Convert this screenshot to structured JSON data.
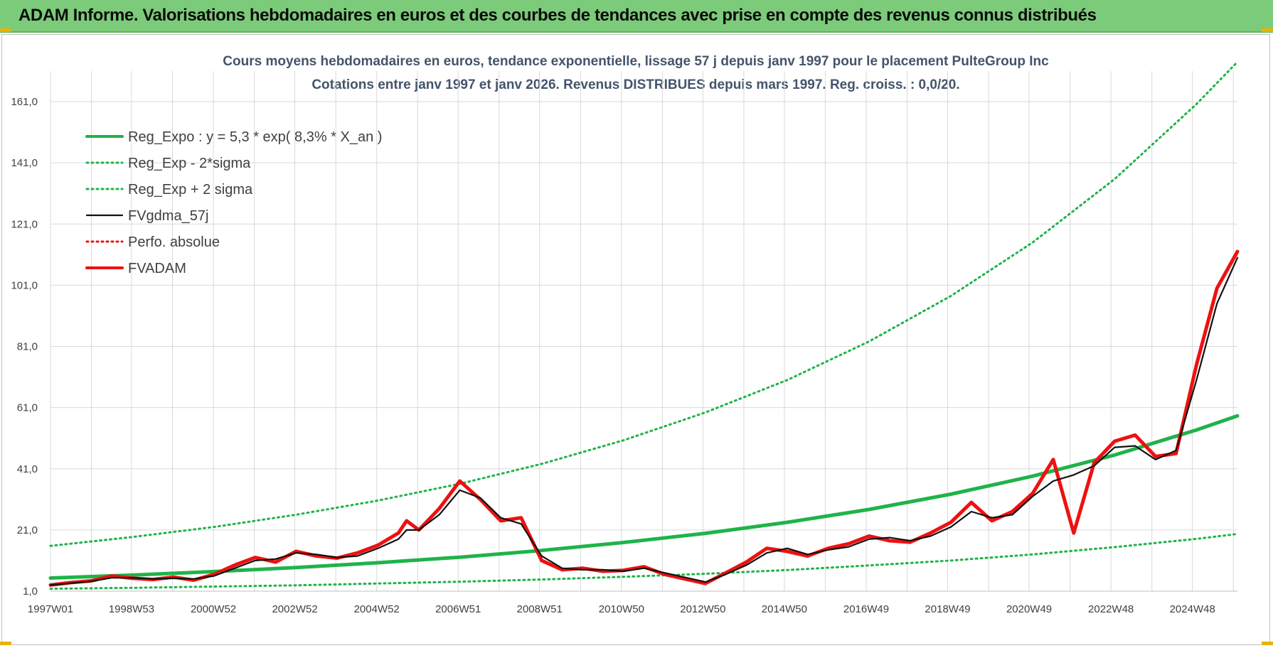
{
  "header": {
    "title": "ADAM Informe. Valorisations hebdomadaires en euros et des courbes de tendances avec prise en compte des revenus connus distribués"
  },
  "colors": {
    "header_bg": "#7ccb7a",
    "reg_green": "#1fb34a",
    "fv_black": "#111111",
    "fvadam_red": "#ee1111",
    "grid": "#d9d9d9",
    "title_blue": "#44546a"
  },
  "chart_data": {
    "type": "line",
    "title_lines": [
      "Cours moyens hebdomadaires en euros, tendance exponentielle, lissage 57 j depuis janv 1997 pour le placement PulteGroup Inc",
      "Cotations entre janv 1997 et janv 2026. Revenus DISTRIBUES depuis mars 1997.  Reg. croiss. : 0,0/20."
    ],
    "xlabel": "",
    "ylabel": "",
    "x_unit": "years since 1997W01",
    "xlim": [
      0,
      29.0
    ],
    "ylim": [
      1.0,
      171.0
    ],
    "y_ticks": [
      1.0,
      21.0,
      41.0,
      61.0,
      81.0,
      101.0,
      121.0,
      141.0,
      161.0
    ],
    "y_tick_labels": [
      "1,0",
      "21,0",
      "41,0",
      "61,0",
      "81,0",
      "101,0",
      "121,0",
      "141,0",
      "161,0"
    ],
    "x_ticks": [
      0,
      1.98,
      3.98,
      5.97,
      7.97,
      9.96,
      11.95,
      13.95,
      15.94,
      17.93,
      19.93,
      21.92,
      23.91,
      25.91,
      27.9
    ],
    "x_tick_labels": [
      "1997W01",
      "1998W53",
      "2000W52",
      "2002W52",
      "2004W52",
      "2006W51",
      "2008W51",
      "2010W50",
      "2012W50",
      "2014W50",
      "2016W49",
      "2018W49",
      "2020W49",
      "2022W48",
      "2024W48"
    ],
    "grid": true,
    "legend_position": "top-left",
    "series": [
      {
        "name": "Reg_Expo : y = 5,3 * exp( 8,3% *  X_an )",
        "style": "solid-thick",
        "color": "#1fb34a",
        "x": [
          0,
          2,
          4,
          6,
          8,
          10,
          12,
          14,
          16,
          18,
          20,
          22,
          24,
          26,
          28,
          29
        ],
        "values": [
          5.3,
          6.25,
          7.4,
          8.7,
          10.3,
          12.1,
          14.3,
          16.9,
          19.9,
          23.5,
          27.7,
          32.7,
          38.6,
          45.5,
          53.7,
          58.3
        ]
      },
      {
        "name": "Reg_Exp - 2*sigma",
        "style": "dotted",
        "color": "#1fb34a",
        "x": [
          0,
          2,
          4,
          6,
          8,
          10,
          12,
          14,
          16,
          18,
          20,
          22,
          24,
          26,
          28,
          29
        ],
        "values": [
          1.8,
          2.1,
          2.5,
          2.9,
          3.5,
          4.1,
          4.8,
          5.7,
          6.7,
          7.9,
          9.4,
          11.0,
          13.0,
          15.4,
          18.1,
          19.7
        ]
      },
      {
        "name": "Reg_Exp + 2 sigma",
        "style": "dotted",
        "color": "#1fb34a",
        "x": [
          0,
          2,
          4,
          6,
          8,
          10,
          12,
          14,
          16,
          18,
          20,
          22,
          24,
          26,
          28,
          29
        ],
        "values": [
          15.8,
          18.7,
          22.0,
          26.0,
          30.6,
          36.1,
          42.6,
          50.3,
          59.4,
          70.0,
          82.6,
          97.5,
          115.0,
          135.7,
          160.2,
          174.0
        ]
      },
      {
        "name": "FVgdma_57j",
        "style": "solid",
        "color": "#111111",
        "x": [
          0,
          0.5,
          1.0,
          1.5,
          2.0,
          2.5,
          3.0,
          3.5,
          4.0,
          4.5,
          5.0,
          5.5,
          6.0,
          6.5,
          7.0,
          7.5,
          8.0,
          8.5,
          8.7,
          9.0,
          9.5,
          10.0,
          10.5,
          11.0,
          11.5,
          12.0,
          12.5,
          13.0,
          13.5,
          14.0,
          14.5,
          15.0,
          15.5,
          16.0,
          16.5,
          17.0,
          17.5,
          18.0,
          18.5,
          19.0,
          19.5,
          20.0,
          20.5,
          21.0,
          21.5,
          22.0,
          22.5,
          23.0,
          23.5,
          24.0,
          24.5,
          25.0,
          25.5,
          26.0,
          26.5,
          27.0,
          27.5,
          28.0,
          28.5,
          29.0
        ],
        "values": [
          3.0,
          3.6,
          4.2,
          5.4,
          5.4,
          5.0,
          5.2,
          5.0,
          6.0,
          8.5,
          11.0,
          11.5,
          13.5,
          13.0,
          12.0,
          12.5,
          15.0,
          18.0,
          21.0,
          21.0,
          26.0,
          34.0,
          31.5,
          25.0,
          23.0,
          12.5,
          8.5,
          8.0,
          8.0,
          7.5,
          8.5,
          7.0,
          5.5,
          4.0,
          6.5,
          9.5,
          13.5,
          15.0,
          13.0,
          14.5,
          15.5,
          18.0,
          18.5,
          17.5,
          19.0,
          22.0,
          27.0,
          25.0,
          26.0,
          32.0,
          37.0,
          39.0,
          42.0,
          48.0,
          48.5,
          44.0,
          47.0,
          70.0,
          95.0,
          110.0
        ]
      },
      {
        "name": "Perfo. absolue",
        "style": "dotted",
        "color": "#ee1111",
        "x": [],
        "values": []
      },
      {
        "name": "FVADAM",
        "style": "solid-thick",
        "color": "#ee1111",
        "x": [
          0,
          0.5,
          1.0,
          1.5,
          2.0,
          2.5,
          3.0,
          3.5,
          4.0,
          4.5,
          5.0,
          5.5,
          6.0,
          6.5,
          7.0,
          7.5,
          8.0,
          8.5,
          8.7,
          9.0,
          9.5,
          10.0,
          10.5,
          11.0,
          11.5,
          12.0,
          12.5,
          13.0,
          13.5,
          14.0,
          14.5,
          15.0,
          15.5,
          16.0,
          16.5,
          17.0,
          17.5,
          18.0,
          18.5,
          19.0,
          19.5,
          20.0,
          20.5,
          21.0,
          21.5,
          22.0,
          22.5,
          23.0,
          23.5,
          24.0,
          24.5,
          25.0,
          25.5,
          26.0,
          26.5,
          27.0,
          27.5,
          28.0,
          28.5,
          29.0
        ],
        "values": [
          3.0,
          3.8,
          4.4,
          6.0,
          5.2,
          4.8,
          5.6,
          4.6,
          6.5,
          9.5,
          12.0,
          10.5,
          14.0,
          12.5,
          11.8,
          13.5,
          16.0,
          20.0,
          24.0,
          21.0,
          28.0,
          37.0,
          31.0,
          24.0,
          25.0,
          11.0,
          8.0,
          8.5,
          7.5,
          7.8,
          9.0,
          6.5,
          5.0,
          3.5,
          7.0,
          10.5,
          15.0,
          14.0,
          12.5,
          15.0,
          16.5,
          19.0,
          17.5,
          17.0,
          20.0,
          23.5,
          30.0,
          24.0,
          27.0,
          33.0,
          44.0,
          20.0,
          43.0,
          50.0,
          52.0,
          45.0,
          46.0,
          75.0,
          100.0,
          112.0
        ]
      }
    ]
  }
}
